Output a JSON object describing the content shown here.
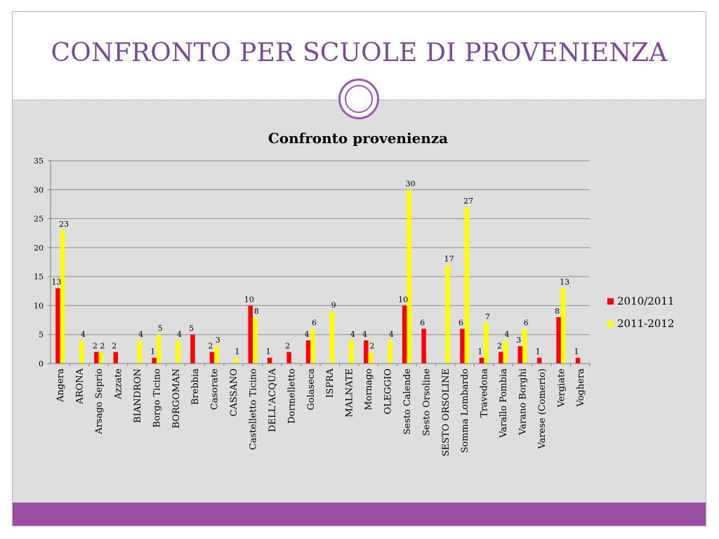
{
  "slide": {
    "title": "CONFRONTO PER SCUOLE DI PROVENIENZA"
  },
  "colors": {
    "accent": "#9b4fa4",
    "title": "#7b4a97",
    "series_2010": "#ff0000",
    "series_2011": "#ffff00"
  },
  "chart_data": {
    "type": "bar",
    "title": "Confronto provenienza",
    "xlabel": "",
    "ylabel": "",
    "ylim": [
      0,
      35
    ],
    "yticks": [
      "0",
      "5",
      "10",
      "15",
      "20",
      "25",
      "30",
      "35"
    ],
    "grid": true,
    "legend": "right",
    "categories": [
      "Angera",
      "ARONA",
      "Arsago Seprio",
      "Azzate",
      "BIANDRON",
      "Borgo Ticino",
      "BORGOMAN",
      "Brebbia",
      "Casorate",
      "CASSANO",
      "Castelletto Ticino",
      "DELL'ACQUA",
      "Dormelletto",
      "Golaseca",
      "ISPRA",
      "MALNATE",
      "Mornago",
      "OLEGGIO",
      "Sesto Calende",
      "Sesto Orsoline",
      "SESTO ORSOLINE",
      "Somma Lombardo",
      "Travedona",
      "Varallo Pombia",
      "Varano Borghi",
      "Varese (Comerio)",
      "Vergiate",
      "Voghera"
    ],
    "series": [
      {
        "name": "2010/2011",
        "color": "#ff0000",
        "values": [
          13,
          null,
          2,
          2,
          null,
          1,
          null,
          5,
          2,
          null,
          10,
          1,
          2,
          4,
          null,
          null,
          4,
          null,
          10,
          6,
          null,
          6,
          1,
          2,
          3,
          1,
          8,
          1
        ]
      },
      {
        "name": "2011-2012",
        "color": "#ffff00",
        "values": [
          23,
          4,
          2,
          null,
          4,
          5,
          4,
          null,
          3,
          1,
          8,
          null,
          null,
          6,
          9,
          4,
          2,
          4,
          30,
          null,
          17,
          27,
          7,
          4,
          6,
          null,
          13,
          null
        ]
      }
    ]
  }
}
